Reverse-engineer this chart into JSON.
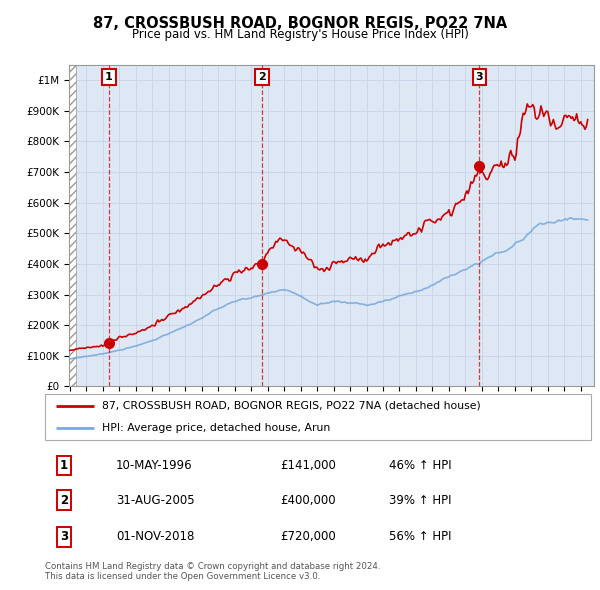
{
  "title": "87, CROSSBUSH ROAD, BOGNOR REGIS, PO22 7NA",
  "subtitle": "Price paid vs. HM Land Registry's House Price Index (HPI)",
  "legend_line1": "87, CROSSBUSH ROAD, BOGNOR REGIS, PO22 7NA (detached house)",
  "legend_line2": "HPI: Average price, detached house, Arun",
  "line_color": "#cc0000",
  "hpi_color": "#7aaadd",
  "sale_points": [
    {
      "date_num": 1996.37,
      "price": 141000,
      "label": "1"
    },
    {
      "date_num": 2005.66,
      "price": 400000,
      "label": "2"
    },
    {
      "date_num": 2018.84,
      "price": 720000,
      "label": "3"
    }
  ],
  "transactions": [
    {
      "label": "1",
      "date": "10-MAY-1996",
      "price": "£141,000",
      "hpi": "46% ↑ HPI"
    },
    {
      "label": "2",
      "date": "31-AUG-2005",
      "price": "£400,000",
      "hpi": "39% ↑ HPI"
    },
    {
      "label": "3",
      "date": "01-NOV-2018",
      "price": "£720,000",
      "hpi": "56% ↑ HPI"
    }
  ],
  "footnote": "Contains HM Land Registry data © Crown copyright and database right 2024.\nThis data is licensed under the Open Government Licence v3.0.",
  "grid_color": "#c8d4e8",
  "plot_bg": "#dde8f4"
}
